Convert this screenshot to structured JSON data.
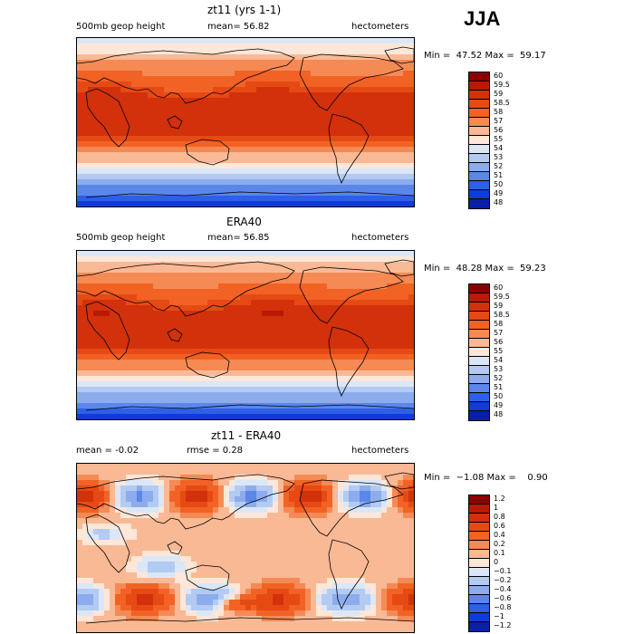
{
  "season": "JJA",
  "charts": [
    {
      "id": "model",
      "title": "zt11 (yrs 1-1)",
      "left_text": "500mb geop height",
      "mid_text": "mean=  56.82",
      "right_text": "hectometers",
      "minmax": "Min =  47.52 Max =  59.17",
      "levels": [
        "60",
        "59.5",
        "59",
        "58.5",
        "58",
        "57",
        "56",
        "55",
        "54",
        "53",
        "52",
        "51",
        "50",
        "49",
        "48"
      ],
      "colors": [
        "#8a0000",
        "#b81a05",
        "#d2310b",
        "#e64a14",
        "#f26224",
        "#f58a55",
        "#f9b995",
        "#fde7d9",
        "#dbe7f7",
        "#b3cbf2",
        "#8cacee",
        "#5b86ea",
        "#2f5fe6",
        "#0f3bd8",
        "#0a1fa8"
      ]
    },
    {
      "id": "obs",
      "title": "ERA40",
      "left_text": "500mb geop height",
      "mid_text": "mean=  56.85",
      "right_text": "hectometers",
      "minmax": "Min =  48.28 Max =  59.23",
      "levels": [
        "60",
        "59.5",
        "59",
        "58.5",
        "58",
        "57",
        "56",
        "55",
        "54",
        "53",
        "52",
        "51",
        "50",
        "49",
        "48"
      ],
      "colors": [
        "#8a0000",
        "#b81a05",
        "#d2310b",
        "#e64a14",
        "#f26224",
        "#f58a55",
        "#f9b995",
        "#fde7d9",
        "#dbe7f7",
        "#b3cbf2",
        "#8cacee",
        "#5b86ea",
        "#2f5fe6",
        "#0f3bd8",
        "#0a1fa8"
      ]
    },
    {
      "id": "diff",
      "title": "zt11 - ERA40",
      "left_text": "mean =   -0.02",
      "mid_text": "rmse =     0.28",
      "right_text": "hectometers",
      "minmax": "Min =  −1.08 Max =    0.90",
      "levels": [
        "1.2",
        "1",
        "0.8",
        "0.6",
        "0.4",
        "0.2",
        "0.1",
        "0",
        "−0.1",
        "−0.2",
        "−0.4",
        "−0.6",
        "−0.8",
        "−1",
        "−1.2"
      ],
      "colors": [
        "#8a0000",
        "#b81a05",
        "#d2310b",
        "#e64a14",
        "#f26224",
        "#f58a55",
        "#f9b995",
        "#fde7d9",
        "#dbe7f7",
        "#b3cbf2",
        "#8cacee",
        "#5b86ea",
        "#2f5fe6",
        "#0f3bd8",
        "#0a1fa8"
      ]
    }
  ],
  "chart_data": [
    {
      "type": "heatmap",
      "title": "zt11 (yrs 1-1)",
      "variable": "500mb geop height",
      "units": "hectometers",
      "mean": 56.82,
      "min": 47.52,
      "max": 59.17,
      "contour_levels": [
        48,
        49,
        50,
        51,
        52,
        53,
        54,
        55,
        56,
        57,
        58,
        58.5,
        59,
        59.5,
        60
      ]
    },
    {
      "type": "heatmap",
      "title": "ERA40",
      "variable": "500mb geop height",
      "units": "hectometers",
      "mean": 56.85,
      "min": 48.28,
      "max": 59.23,
      "contour_levels": [
        48,
        49,
        50,
        51,
        52,
        53,
        54,
        55,
        56,
        57,
        58,
        58.5,
        59,
        59.5,
        60
      ]
    },
    {
      "type": "heatmap",
      "title": "zt11 - ERA40",
      "units": "hectometers",
      "mean": -0.02,
      "rmse": 0.28,
      "min": -1.08,
      "max": 0.9,
      "contour_levels": [
        -1.2,
        -1,
        -0.8,
        -0.6,
        -0.4,
        -0.2,
        -0.1,
        0,
        0.1,
        0.2,
        0.4,
        0.6,
        0.8,
        1,
        1.2
      ]
    }
  ]
}
